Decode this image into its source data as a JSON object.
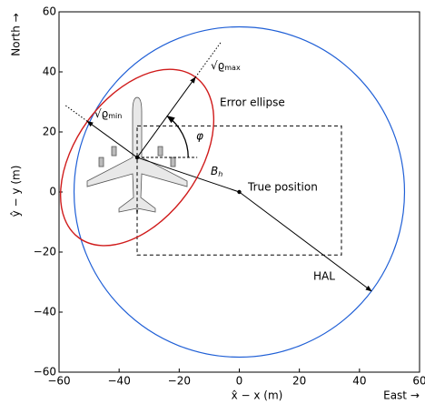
{
  "chart_data": {
    "type": "error-ellipse",
    "xlabel": "x̂ − x (m)",
    "ylabel": "ŷ − y (m)",
    "east_label": "East →",
    "north_label": "North →",
    "xlim": [
      -60,
      60
    ],
    "ylim": [
      -60,
      60
    ],
    "xticks": [
      {
        "value": -60,
        "label": "−60"
      },
      {
        "value": -40,
        "label": "−40"
      },
      {
        "value": -20,
        "label": "−20"
      },
      0,
      20,
      40,
      60
    ],
    "yticks": [
      {
        "value": -60,
        "label": "−60"
      },
      {
        "value": -40,
        "label": "−40"
      },
      {
        "value": -20,
        "label": "−20"
      },
      0,
      20,
      40,
      60
    ],
    "true_position": {
      "label": "True position",
      "x": 0,
      "y": 0
    },
    "estimated_position": {
      "label": {
        "base": "B",
        "sub": "h"
      },
      "x": -34,
      "y": 11.5
    },
    "hal_circle": {
      "label": "HAL",
      "radius": 55,
      "arrow_x": 44,
      "arrow_y": -33,
      "color": "#1f5fd6"
    },
    "box": {
      "x": [
        -34,
        34
      ],
      "y": [
        -21,
        22
      ]
    },
    "ellipse": {
      "label": "Error ellipse",
      "semi_major": 33,
      "semi_minor": 20.5,
      "angle": 54,
      "color": "#d01c1c",
      "major_label": {
        "base": "√ϱ",
        "sub": "max"
      },
      "minor_label": {
        "base": "√ϱ",
        "sub": "min"
      },
      "angle_label": "φ"
    }
  }
}
